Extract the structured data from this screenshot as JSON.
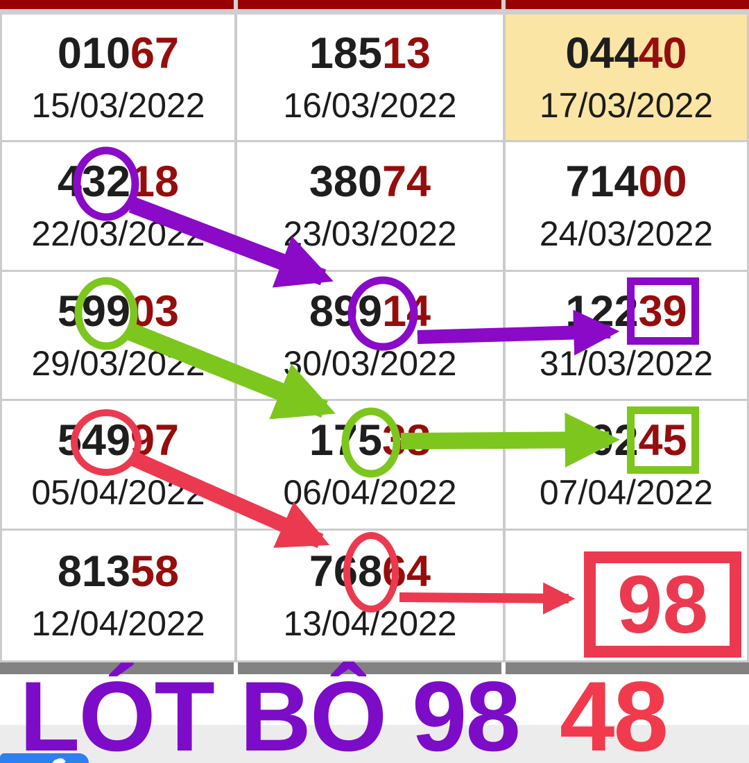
{
  "colors": {
    "header_bar": "#990000",
    "grid_line": "#CBCBCB",
    "digit_black": "#1E1E1E",
    "digit_red": "#960D0D",
    "date_color": "#1C1C1C",
    "highlight_yellow": "#FBE5A4",
    "purple": "#8A0AC8",
    "green": "#7CC61E",
    "red": "#EB3A50",
    "footer_purple": "#7D0CC8",
    "footer_red": "#F13B4D",
    "gray_bar": "#828282",
    "footer_bg": "#ECECEC",
    "blue_badge": "#2E7FF0"
  },
  "table": {
    "rows": [
      {
        "cells": [
          {
            "num_black": "010",
            "num_red": "67",
            "date": "15/03/2022"
          },
          {
            "num_black": "185",
            "num_red": "13",
            "date": "16/03/2022"
          },
          {
            "num_black": "044",
            "num_red": "40",
            "date": "17/03/2022",
            "bg": "yellow"
          }
        ]
      },
      {
        "cells": [
          {
            "num_black": "432",
            "num_red": "18",
            "date": "22/03/2022"
          },
          {
            "num_black": "380",
            "num_red": "74",
            "date": "23/03/2022"
          },
          {
            "num_black": "714",
            "num_red": "00",
            "date": "24/03/2022"
          }
        ]
      },
      {
        "cells": [
          {
            "num_black": "599",
            "num_red": "03",
            "date": "29/03/2022"
          },
          {
            "num_black": "899",
            "num_red": "14",
            "date": "30/03/2022"
          },
          {
            "num_black": "122",
            "num_red": "39",
            "date": "31/03/2022",
            "box": "purple"
          }
        ]
      },
      {
        "cells": [
          {
            "num_black": "549",
            "num_red": "97",
            "date": "05/04/2022"
          },
          {
            "num_black": "175",
            "num_red": "38",
            "date": "06/04/2022"
          },
          {
            "num_black": "902",
            "num_red": "45",
            "date": "07/04/2022",
            "box": "green"
          }
        ]
      },
      {
        "cells": [
          {
            "num_black": "813",
            "num_red": "58",
            "date": "12/04/2022"
          },
          {
            "num_black": "768",
            "num_red": "64",
            "date": "13/04/2022"
          },
          {
            "result": "98"
          }
        ]
      }
    ]
  },
  "annotations": {
    "purple_chain": {
      "circled": [
        "32 in 43218",
        "91 in 89914"
      ],
      "boxed": "39 in 12239"
    },
    "green_chain": {
      "circled": [
        "99 in 59903",
        "5 in 17538"
      ],
      "boxed": "45 in 90245"
    },
    "red_chain": {
      "circled": [
        "49 in 54997",
        "8 in 76864"
      ],
      "boxed": "98"
    }
  },
  "footer": {
    "title": "LÓT BÔ 98",
    "secondary": "48"
  }
}
